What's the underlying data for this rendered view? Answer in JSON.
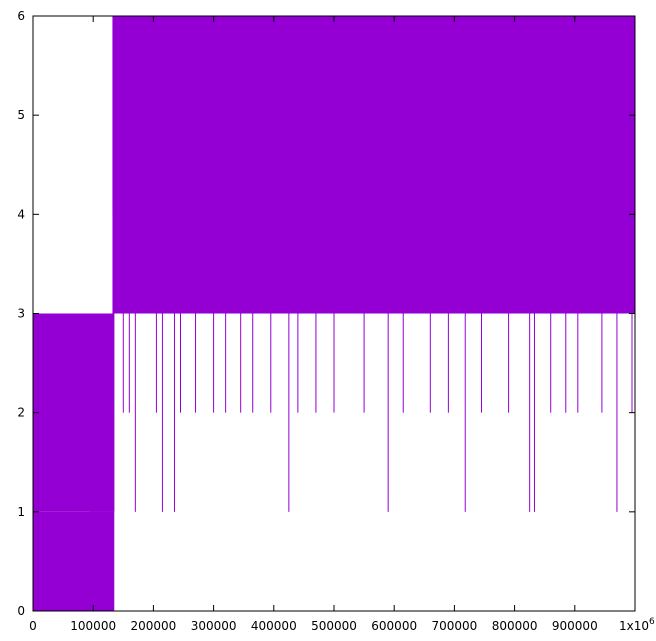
{
  "chart_data": {
    "type": "line",
    "title": "",
    "xlabel": "",
    "ylabel": "",
    "xlim": [
      0,
      1000000
    ],
    "ylim": [
      0,
      6
    ],
    "x_ticks": [
      {
        "value": 0,
        "label": "0"
      },
      {
        "value": 100000,
        "label": "100000"
      },
      {
        "value": 200000,
        "label": "200000"
      },
      {
        "value": 300000,
        "label": "300000"
      },
      {
        "value": 400000,
        "label": "400000"
      },
      {
        "value": 500000,
        "label": "500000"
      },
      {
        "value": 600000,
        "label": "600000"
      },
      {
        "value": 700000,
        "label": "700000"
      },
      {
        "value": 800000,
        "label": "800000"
      },
      {
        "value": 900000,
        "label": "900000"
      }
    ],
    "x_multiplier_label": "1x10",
    "x_multiplier_exponent": "6",
    "y_ticks": [
      {
        "value": 0,
        "label": "0"
      },
      {
        "value": 1,
        "label": "1"
      },
      {
        "value": 2,
        "label": "2"
      },
      {
        "value": 3,
        "label": "3"
      },
      {
        "value": 4,
        "label": "4"
      },
      {
        "value": 5,
        "label": "5"
      },
      {
        "value": 6,
        "label": "6"
      }
    ],
    "grid": false,
    "legend": "none",
    "series": [
      {
        "color": "#9400d3",
        "bands": [
          {
            "x_start": 0,
            "x_end": 135000,
            "y_low": 1,
            "y_high": 3
          },
          {
            "x_start": 0,
            "x_end": 135000,
            "y_low": 0,
            "y_high": 1
          },
          {
            "x_start": 95000,
            "x_end": 135000,
            "y_low": 1,
            "y_high": 3
          },
          {
            "x_start": 132000,
            "x_end": 1000000,
            "y_low": 3,
            "y_high": 6
          },
          {
            "x_start": 132000,
            "x_end": 1000000,
            "y_low": 4,
            "y_high": 6
          }
        ],
        "dips": [
          {
            "x": 150000,
            "y": 2
          },
          {
            "x": 160000,
            "y": 2
          },
          {
            "x": 170000,
            "y": 1
          },
          {
            "x": 205000,
            "y": 2
          },
          {
            "x": 215000,
            "y": 1
          },
          {
            "x": 235000,
            "y": 1
          },
          {
            "x": 245000,
            "y": 2
          },
          {
            "x": 270000,
            "y": 2
          },
          {
            "x": 300000,
            "y": 2
          },
          {
            "x": 320000,
            "y": 2
          },
          {
            "x": 345000,
            "y": 2
          },
          {
            "x": 365000,
            "y": 2
          },
          {
            "x": 395000,
            "y": 2
          },
          {
            "x": 425000,
            "y": 1
          },
          {
            "x": 440000,
            "y": 2
          },
          {
            "x": 470000,
            "y": 2
          },
          {
            "x": 500000,
            "y": 2
          },
          {
            "x": 550000,
            "y": 2
          },
          {
            "x": 590000,
            "y": 1
          },
          {
            "x": 615000,
            "y": 2
          },
          {
            "x": 660000,
            "y": 2
          },
          {
            "x": 690000,
            "y": 2
          },
          {
            "x": 718000,
            "y": 1
          },
          {
            "x": 745000,
            "y": 2
          },
          {
            "x": 790000,
            "y": 2
          },
          {
            "x": 825000,
            "y": 1
          },
          {
            "x": 833000,
            "y": 1
          },
          {
            "x": 860000,
            "y": 2
          },
          {
            "x": 885000,
            "y": 2
          },
          {
            "x": 905000,
            "y": 2
          },
          {
            "x": 945000,
            "y": 2
          },
          {
            "x": 970000,
            "y": 1
          },
          {
            "x": 995000,
            "y": 2
          }
        ]
      }
    ]
  }
}
